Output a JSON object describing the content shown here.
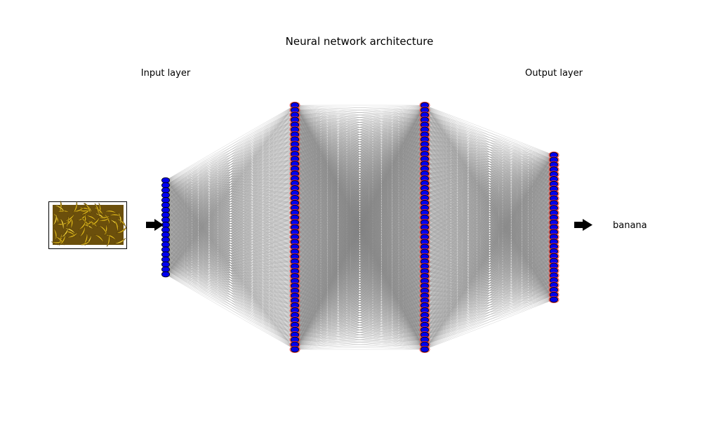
{
  "diagram": {
    "title": "Neural network architecture",
    "input_label": "Input layer",
    "output_label": "Output layer",
    "output_class": "banana",
    "input_image": "banana-photo-thumbnail",
    "layers": [
      {
        "name": "input",
        "neurons": 20
      },
      {
        "name": "hidden-1",
        "neurons": 51
      },
      {
        "name": "hidden-2",
        "neurons": 51
      },
      {
        "name": "output",
        "neurons": 31
      }
    ],
    "colors": {
      "neuron_fill": "#0000ee",
      "neuron_edge": "#000000",
      "neuron_ring": "#ff3b3b",
      "edge": "#808080",
      "arrow": "#000000",
      "banana_yellow": "#d9b21a",
      "banana_dark": "#5a4208"
    }
  }
}
